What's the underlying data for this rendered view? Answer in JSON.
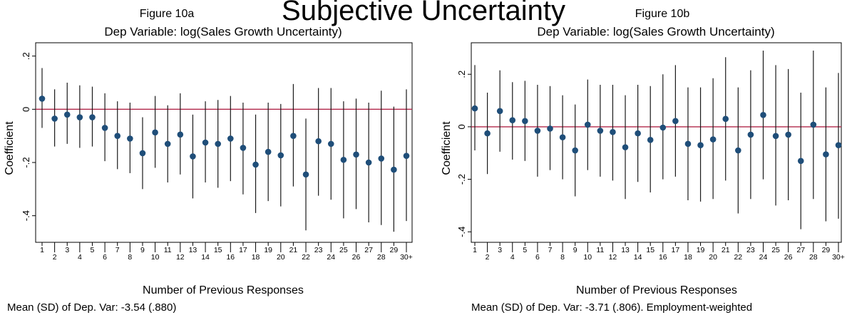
{
  "page": {
    "top_title": "Subjective Uncertainty"
  },
  "colors": {
    "marker": "#1f4e79",
    "ci_line": "#1a1a1a",
    "zero_line": "#b0284a",
    "axis": "#000000",
    "background": "#ffffff"
  },
  "chart_data": [
    {
      "type": "scatter",
      "figure_label": "Figure 10a",
      "title": "Dep Variable:  log(Sales Growth Uncertainty)",
      "xlabel": "Number of Previous Responses",
      "ylabel": "Coefficient",
      "note": "Mean (SD) of Dep. Var: -3.54 (.880)",
      "ylim": [
        -0.5,
        0.25
      ],
      "yticks": [
        -0.4,
        -0.2,
        0,
        0.2
      ],
      "ytick_labels": [
        "-.4",
        "-.2",
        "0",
        ".2"
      ],
      "reference_line": 0,
      "categories": [
        "1",
        "2",
        "3",
        "4",
        "5",
        "6",
        "7",
        "8",
        "9",
        "10",
        "11",
        "12",
        "13",
        "14",
        "15",
        "16",
        "17",
        "18",
        "19",
        "20",
        "21",
        "22",
        "23",
        "24",
        "25",
        "26",
        "27",
        "28",
        "29",
        "30+"
      ],
      "values": [
        0.04,
        -0.035,
        -0.02,
        -0.03,
        -0.03,
        -0.07,
        -0.1,
        -0.11,
        -0.165,
        -0.087,
        -0.13,
        -0.095,
        -0.177,
        -0.125,
        -0.13,
        -0.11,
        -0.145,
        -0.208,
        -0.16,
        -0.173,
        -0.1,
        -0.245,
        -0.12,
        -0.13,
        -0.19,
        -0.17,
        -0.2,
        -0.185,
        -0.227,
        -0.175
      ],
      "ci_low": [
        -0.07,
        -0.14,
        -0.13,
        -0.145,
        -0.14,
        -0.195,
        -0.225,
        -0.24,
        -0.3,
        -0.22,
        -0.275,
        -0.245,
        -0.335,
        -0.275,
        -0.295,
        -0.27,
        -0.32,
        -0.39,
        -0.345,
        -0.365,
        -0.29,
        -0.455,
        -0.325,
        -0.34,
        -0.41,
        -0.375,
        -0.425,
        -0.435,
        -0.46,
        -0.42
      ],
      "ci_high": [
        0.155,
        0.075,
        0.1,
        0.09,
        0.085,
        0.06,
        0.03,
        0.025,
        -0.03,
        0.05,
        0.015,
        0.06,
        -0.02,
        0.03,
        0.035,
        0.05,
        0.025,
        -0.02,
        0.025,
        0.02,
        0.095,
        -0.035,
        0.08,
        0.08,
        0.03,
        0.04,
        0.025,
        0.07,
        0.01,
        0.075
      ],
      "grid": false,
      "legend": "none"
    },
    {
      "type": "scatter",
      "figure_label": "Figure 10b",
      "title": "Dep Variable:  log(Sales Growth Uncertainty)",
      "xlabel": "Number of Previous Responses",
      "ylabel": "Coefficient",
      "note": "Mean (SD) of Dep. Var: -3.71 (.806). Employment-weighted",
      "ylim": [
        -0.44,
        0.32
      ],
      "yticks": [
        -0.4,
        -0.2,
        0,
        0.2
      ],
      "ytick_labels": [
        "-.4",
        "-.2",
        "0",
        ".2"
      ],
      "reference_line": 0,
      "categories": [
        "1",
        "2",
        "3",
        "4",
        "5",
        "6",
        "7",
        "8",
        "9",
        "10",
        "11",
        "12",
        "13",
        "14",
        "15",
        "16",
        "17",
        "18",
        "19",
        "20",
        "21",
        "22",
        "23",
        "24",
        "25",
        "26",
        "27",
        "28",
        "29",
        "30+"
      ],
      "values": [
        0.07,
        -0.025,
        0.06,
        0.025,
        0.022,
        -0.015,
        -0.007,
        -0.04,
        -0.09,
        0.008,
        -0.015,
        -0.02,
        -0.078,
        -0.025,
        -0.05,
        -0.003,
        0.022,
        -0.065,
        -0.07,
        -0.048,
        0.03,
        -0.09,
        -0.03,
        0.045,
        -0.035,
        -0.03,
        -0.13,
        0.008,
        -0.105,
        -0.07
      ],
      "ci_low": [
        -0.09,
        -0.18,
        -0.095,
        -0.125,
        -0.13,
        -0.19,
        -0.165,
        -0.2,
        -0.265,
        -0.165,
        -0.19,
        -0.205,
        -0.275,
        -0.21,
        -0.25,
        -0.2,
        -0.19,
        -0.28,
        -0.285,
        -0.275,
        -0.205,
        -0.33,
        -0.275,
        -0.2,
        -0.3,
        -0.28,
        -0.39,
        -0.275,
        -0.36,
        -0.35
      ],
      "ci_high": [
        0.235,
        0.13,
        0.215,
        0.17,
        0.175,
        0.16,
        0.155,
        0.12,
        0.085,
        0.18,
        0.16,
        0.16,
        0.12,
        0.16,
        0.155,
        0.2,
        0.235,
        0.15,
        0.15,
        0.185,
        0.265,
        0.15,
        0.215,
        0.29,
        0.235,
        0.22,
        0.13,
        0.29,
        0.15,
        0.205
      ],
      "grid": false,
      "legend": "none"
    }
  ]
}
